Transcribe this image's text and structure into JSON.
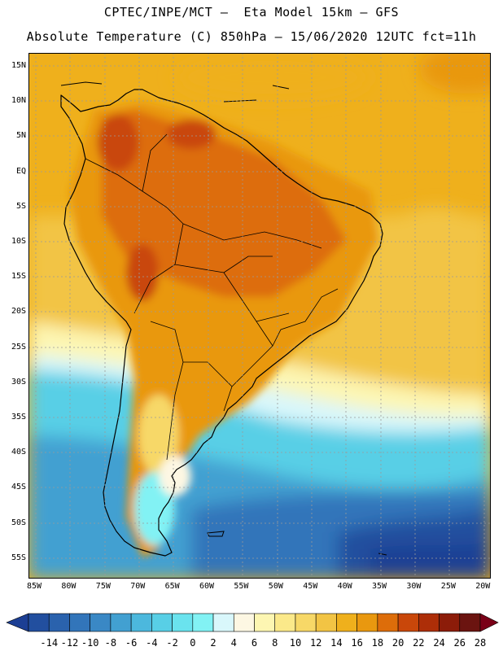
{
  "header": {
    "line1": "CPTEC/INPE/MCT –  Eta Model 15km – GFS",
    "line2": "Absolute Temperature (C) 850hPa – 15/06/2020 12UTC fct=11h"
  },
  "map": {
    "lat_labels": [
      "15N",
      "10N",
      "5N",
      "EQ",
      "5S",
      "10S",
      "15S",
      "20S",
      "25S",
      "30S",
      "35S",
      "40S",
      "45S",
      "50S",
      "55S"
    ],
    "lon_labels": [
      "85W",
      "80W",
      "75W",
      "70W",
      "65W",
      "60W",
      "55W",
      "50W",
      "45W",
      "40W",
      "35W",
      "30W",
      "25W",
      "20W"
    ],
    "lat_range": [
      -58,
      17
    ],
    "lon_range": [
      -86,
      -19
    ],
    "grid": "dotted"
  },
  "colorbar": {
    "ticks": [
      "-14",
      "-12",
      "-10",
      "-8",
      "-6",
      "-4",
      "-2",
      "0",
      "2",
      "4",
      "6",
      "8",
      "10",
      "12",
      "14",
      "16",
      "18",
      "20",
      "22",
      "24",
      "26",
      "28"
    ],
    "colors": [
      "#1c3f94",
      "#224f9f",
      "#2a62ad",
      "#3275ba",
      "#3a88c5",
      "#42a0d1",
      "#4cb8dd",
      "#58cfe6",
      "#6ae3ee",
      "#82f2f4",
      "#d9f7fb",
      "#fdf7e3",
      "#fdf6b2",
      "#fbe98a",
      "#f7d867",
      "#f2c444",
      "#efb01c",
      "#e9980f",
      "#dd6d0a",
      "#c9470a",
      "#ad2e08",
      "#8c1c09",
      "#6b1410",
      "#7a0017"
    ]
  }
}
